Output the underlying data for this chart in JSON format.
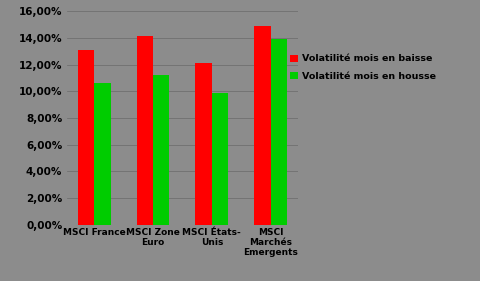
{
  "categories": [
    "MSCI France",
    "MSCI Zone\nEuro",
    "MSCI États-\nUnis",
    "MSCI\nMarchés\nEmergents"
  ],
  "baisse": [
    0.131,
    0.1415,
    0.121,
    0.149
  ],
  "hausse": [
    0.1065,
    0.112,
    0.099,
    0.139
  ],
  "color_baisse": "#ff0000",
  "color_hausse": "#00cc00",
  "legend_baisse": "Volatilité mois en baisse",
  "legend_hausse": "Volatilité mois en housse",
  "ylim": [
    0,
    0.16
  ],
  "yticks": [
    0.0,
    0.02,
    0.04,
    0.06,
    0.08,
    0.1,
    0.12,
    0.14,
    0.16
  ],
  "background_color": "#8c8c8c",
  "bar_width": 0.28,
  "figsize": [
    4.8,
    2.81
  ],
  "dpi": 100
}
